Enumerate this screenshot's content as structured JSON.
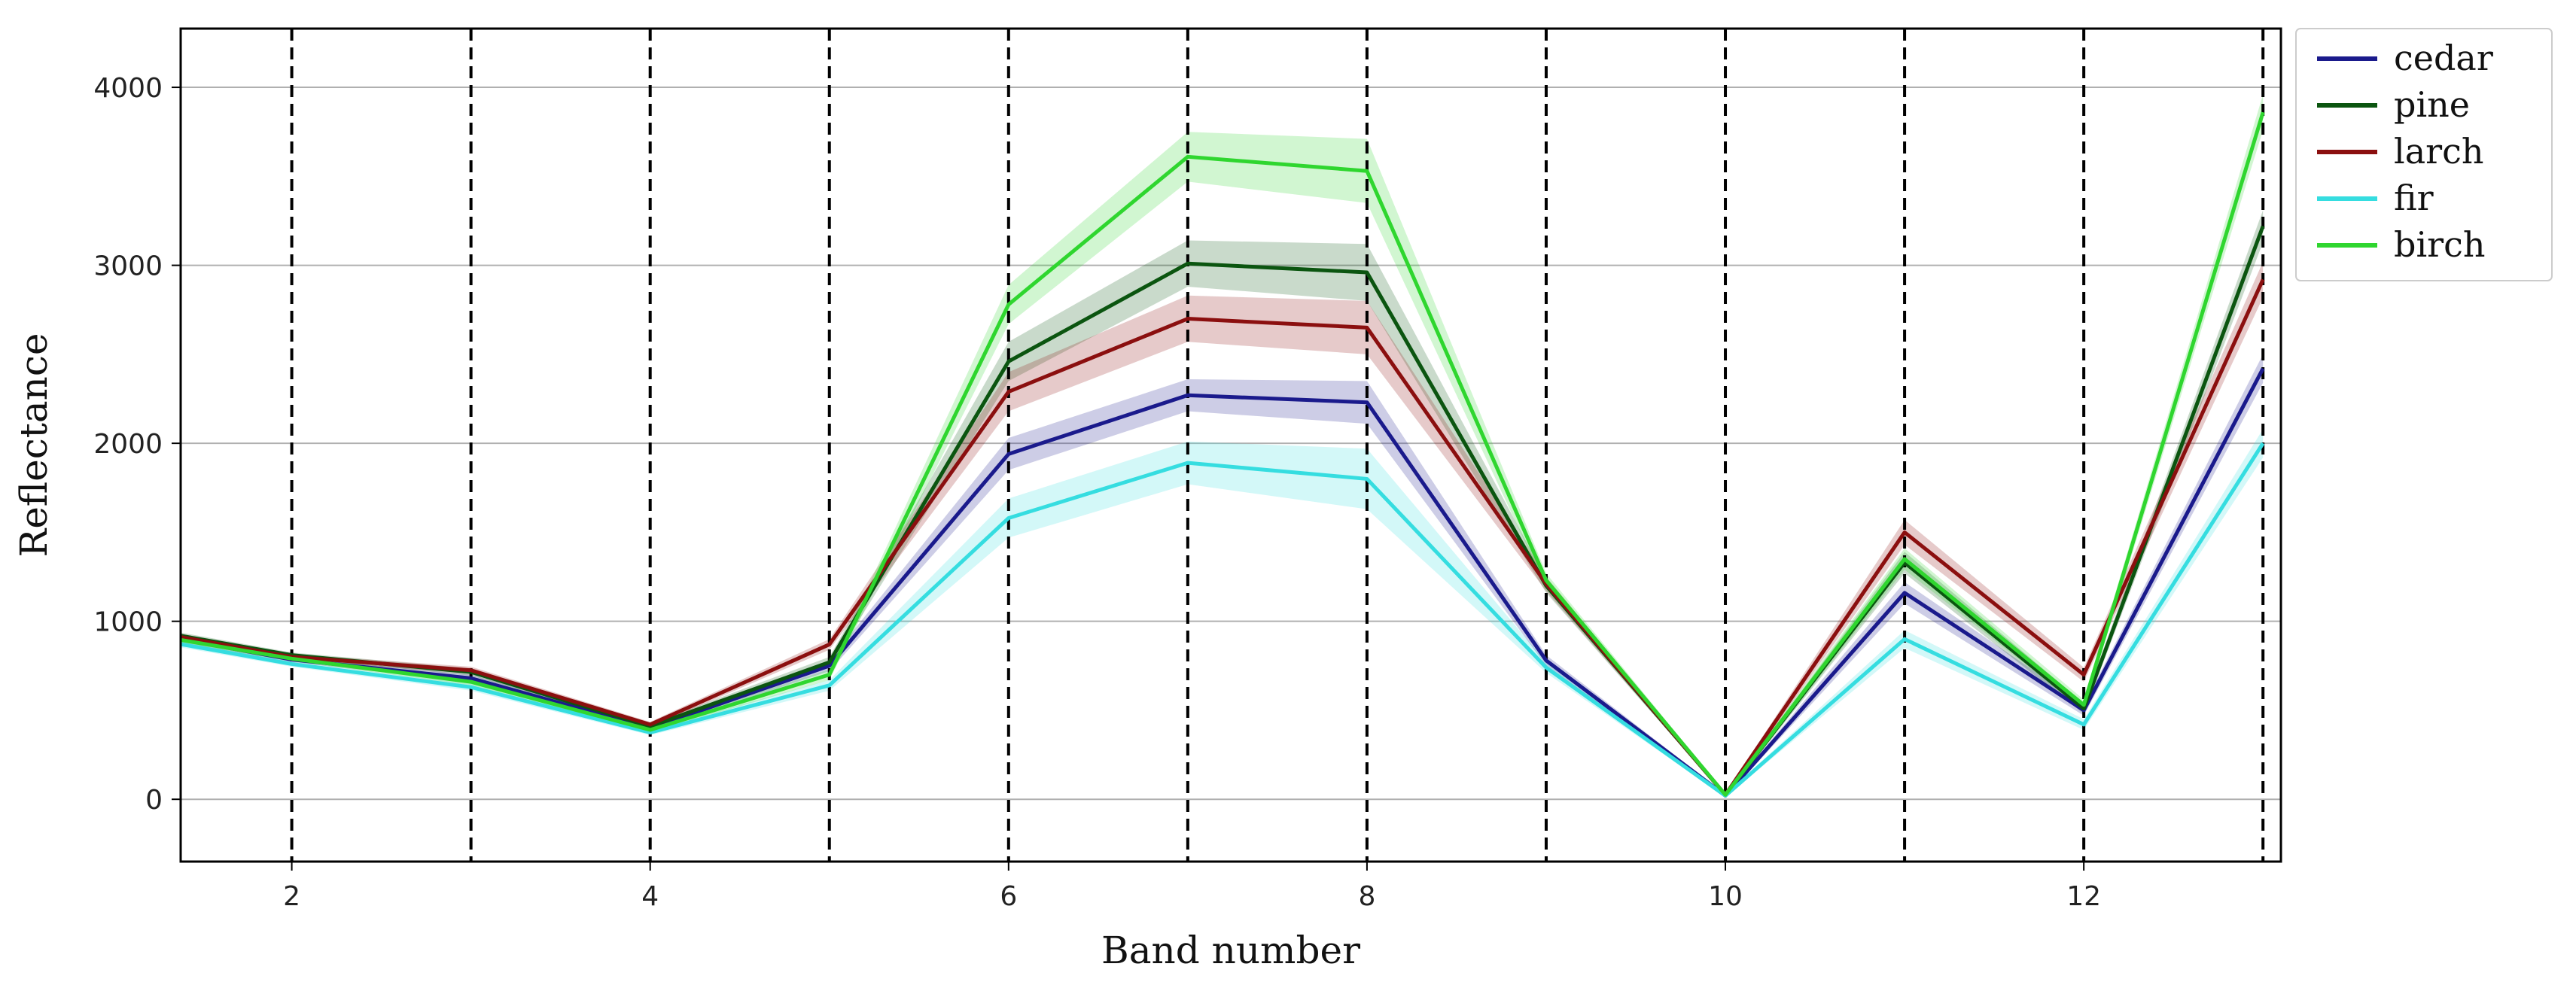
{
  "chart_data": {
    "type": "line",
    "xlabel": "Band number",
    "ylabel": "Reflectance",
    "xlim": [
      1.38,
      13.1
    ],
    "ylim": [
      -350,
      4330
    ],
    "x_ticks": [
      2,
      4,
      6,
      8,
      10,
      12
    ],
    "y_ticks": [
      0,
      1000,
      2000,
      3000,
      4000
    ],
    "y_grid": true,
    "vertical_dashed_lines": [
      2,
      3,
      4,
      5,
      6,
      7,
      8,
      9,
      10,
      11,
      12,
      13
    ],
    "legend_position": "outside-top-right",
    "x": [
      1,
      2,
      3,
      4,
      5,
      6,
      7,
      8,
      9,
      10,
      11,
      12,
      13
    ],
    "series": [
      {
        "name": "cedar",
        "color": "#1a1a8c",
        "values": [
          970,
          785,
          680,
          400,
          750,
          1940,
          2270,
          2230,
          780,
          20,
          1160,
          500,
          2420
        ],
        "spread": [
          20,
          15,
          20,
          15,
          30,
          90,
          90,
          120,
          30,
          8,
          60,
          30,
          80
        ]
      },
      {
        "name": "pine",
        "color": "#0b5510",
        "values": [
          985,
          810,
          715,
          410,
          770,
          2460,
          3010,
          2960,
          1200,
          25,
          1330,
          510,
          3220
        ],
        "spread": [
          20,
          15,
          20,
          15,
          30,
          110,
          130,
          160,
          40,
          8,
          60,
          30,
          90
        ]
      },
      {
        "name": "larch",
        "color": "#8b0f0f",
        "values": [
          980,
          800,
          725,
          420,
          870,
          2290,
          2700,
          2650,
          1210,
          25,
          1500,
          700,
          2920
        ],
        "spread": [
          20,
          15,
          20,
          15,
          30,
          110,
          130,
          150,
          40,
          8,
          70,
          40,
          100
        ]
      },
      {
        "name": "fir",
        "color": "#35dde0",
        "values": [
          940,
          760,
          630,
          375,
          640,
          1580,
          1890,
          1800,
          740,
          20,
          900,
          420,
          2000
        ],
        "spread": [
          20,
          15,
          20,
          15,
          30,
          110,
          120,
          170,
          30,
          8,
          50,
          30,
          80
        ]
      },
      {
        "name": "birch",
        "color": "#2fd62f",
        "values": [
          960,
          790,
          660,
          390,
          700,
          2780,
          3610,
          3530,
          1230,
          25,
          1350,
          530,
          3860
        ],
        "spread": [
          20,
          15,
          20,
          15,
          30,
          110,
          140,
          180,
          40,
          8,
          60,
          30,
          100
        ]
      }
    ]
  }
}
